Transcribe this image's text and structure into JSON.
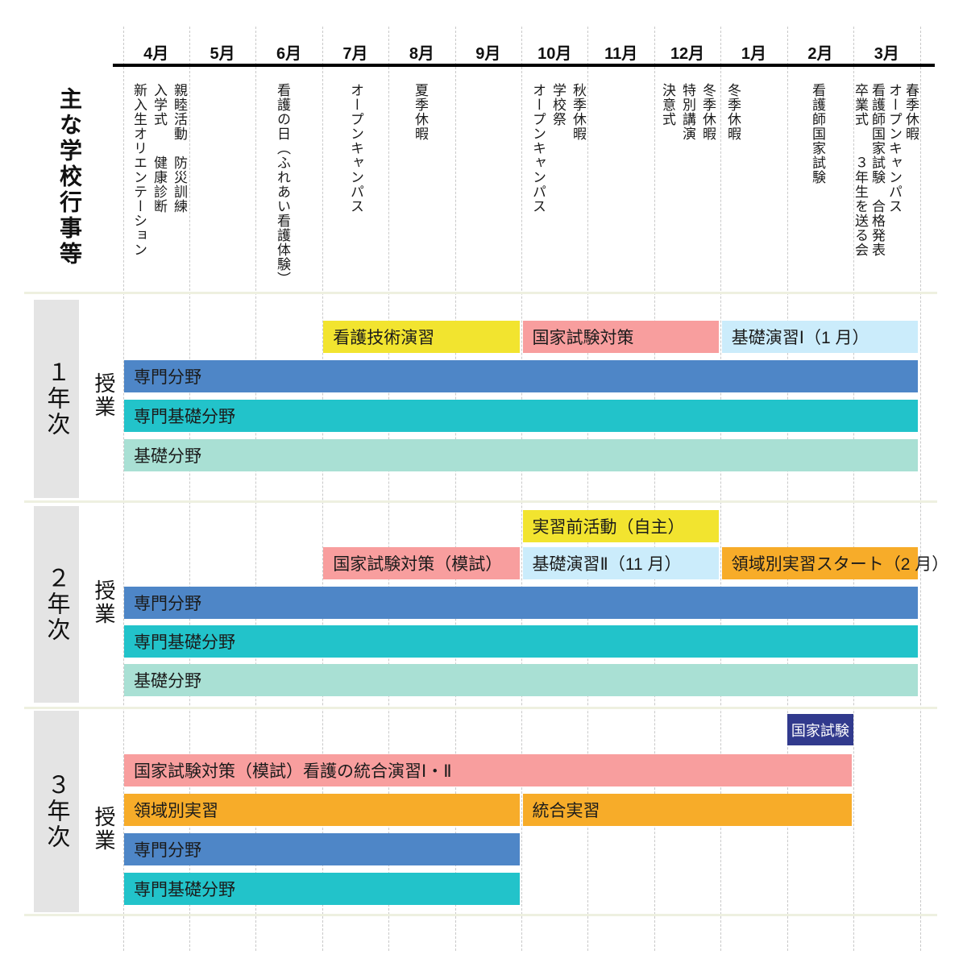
{
  "header": {
    "title": "主な学校行事等"
  },
  "colors": {
    "yellow": "#F2E42F",
    "pink": "#F89E9E",
    "lightblue": "#CBECFB",
    "blue": "#4E86C7",
    "teal": "#22C3CA",
    "mint": "#A9E0D4",
    "orange": "#F7AC29",
    "navy": "#313A8D",
    "gray_box": "#E4E4E4",
    "divider": "#EEF0E0",
    "gridline": "#C9C9C9",
    "axis": "#000000"
  },
  "chart_data": {
    "type": "bar",
    "subtype": "gantt-schedule",
    "title": "主な学校行事等",
    "x_axis": {
      "unit": "month",
      "categories": [
        "4月",
        "5月",
        "6月",
        "7月",
        "8月",
        "9月",
        "10月",
        "11月",
        "12月",
        "1月",
        "2月",
        "3月"
      ]
    },
    "events": [
      {
        "month": "4月",
        "lines": [
          "親睦活動　防災訓練",
          "入学式　　健康診断",
          "新入生オリエンテーション"
        ]
      },
      {
        "month": "6月",
        "lines": [
          "看護の日（ふれあい看護体験）"
        ]
      },
      {
        "month": "7月",
        "lines": [
          "オープンキャンパス"
        ]
      },
      {
        "month": "8月",
        "lines": [
          "夏季休暇"
        ]
      },
      {
        "month": "10月",
        "lines": [
          "秋季休暇",
          "学校祭",
          "オープンキャンパス"
        ]
      },
      {
        "month": "12月",
        "lines": [
          "冬季休暇",
          "特別講演",
          "決意式"
        ]
      },
      {
        "month": "1月",
        "lines": [
          "冬季休暇"
        ]
      },
      {
        "month": "2月",
        "lines": [
          "看護師国家試験"
        ]
      },
      {
        "month": "3月",
        "lines": [
          "春季休暇",
          "オープンキャンパス",
          "看護師国家試験　合格発表",
          "卒業式　　３年生を送る会"
        ]
      }
    ],
    "sections": [
      {
        "name": "１年次",
        "activity_label": "授業",
        "bars": [
          {
            "label": "看護技術演習",
            "color": "yellow",
            "row": 0,
            "start": 3,
            "end": 6
          },
          {
            "label": "国家試験対策",
            "color": "pink",
            "row": 0,
            "start": 6,
            "end": 9
          },
          {
            "label": "基礎演習Ⅰ（1 月）",
            "color": "lightblue",
            "row": 0,
            "start": 9,
            "end": 12
          },
          {
            "label": "専門分野",
            "color": "blue",
            "row": 1,
            "start": 0,
            "end": 12
          },
          {
            "label": "専門基礎分野",
            "color": "teal",
            "row": 2,
            "start": 0,
            "end": 12
          },
          {
            "label": "基礎分野",
            "color": "mint",
            "row": 3,
            "start": 0,
            "end": 12
          }
        ]
      },
      {
        "name": "２年次",
        "activity_label": "授業",
        "bars": [
          {
            "label": "実習前活動（自主）",
            "color": "yellow",
            "row": 0,
            "start": 6,
            "end": 9
          },
          {
            "label": "国家試験対策（模試）",
            "color": "pink",
            "row": 1,
            "start": 3,
            "end": 6
          },
          {
            "label": "基礎演習Ⅱ（11 月）",
            "color": "lightblue",
            "row": 1,
            "start": 6,
            "end": 9
          },
          {
            "label": "領域別実習スタート（2 月）",
            "color": "orange",
            "row": 1,
            "start": 9,
            "end": 12
          },
          {
            "label": "専門分野",
            "color": "blue",
            "row": 2,
            "start": 0,
            "end": 12
          },
          {
            "label": "専門基礎分野",
            "color": "teal",
            "row": 3,
            "start": 0,
            "end": 12
          },
          {
            "label": "基礎分野",
            "color": "mint",
            "row": 4,
            "start": 0,
            "end": 12
          }
        ]
      },
      {
        "name": "３年次",
        "activity_label": "授業",
        "badge": {
          "label": "国家試験",
          "color": "navy",
          "start": 10,
          "end": 11
        },
        "bars": [
          {
            "label": "国家試験対策（模試）看護の統合演習Ⅰ・Ⅱ",
            "color": "pink",
            "row": 0,
            "start": 0,
            "end": 11
          },
          {
            "label": "領域別実習",
            "color": "orange",
            "row": 1,
            "start": 0,
            "end": 6
          },
          {
            "label": "統合実習",
            "color": "orange",
            "row": 1,
            "start": 6,
            "end": 11
          },
          {
            "label": "専門分野",
            "color": "blue",
            "row": 2,
            "start": 0,
            "end": 6
          },
          {
            "label": "専門基礎分野",
            "color": "teal",
            "row": 3,
            "start": 0,
            "end": 6
          }
        ]
      }
    ]
  }
}
